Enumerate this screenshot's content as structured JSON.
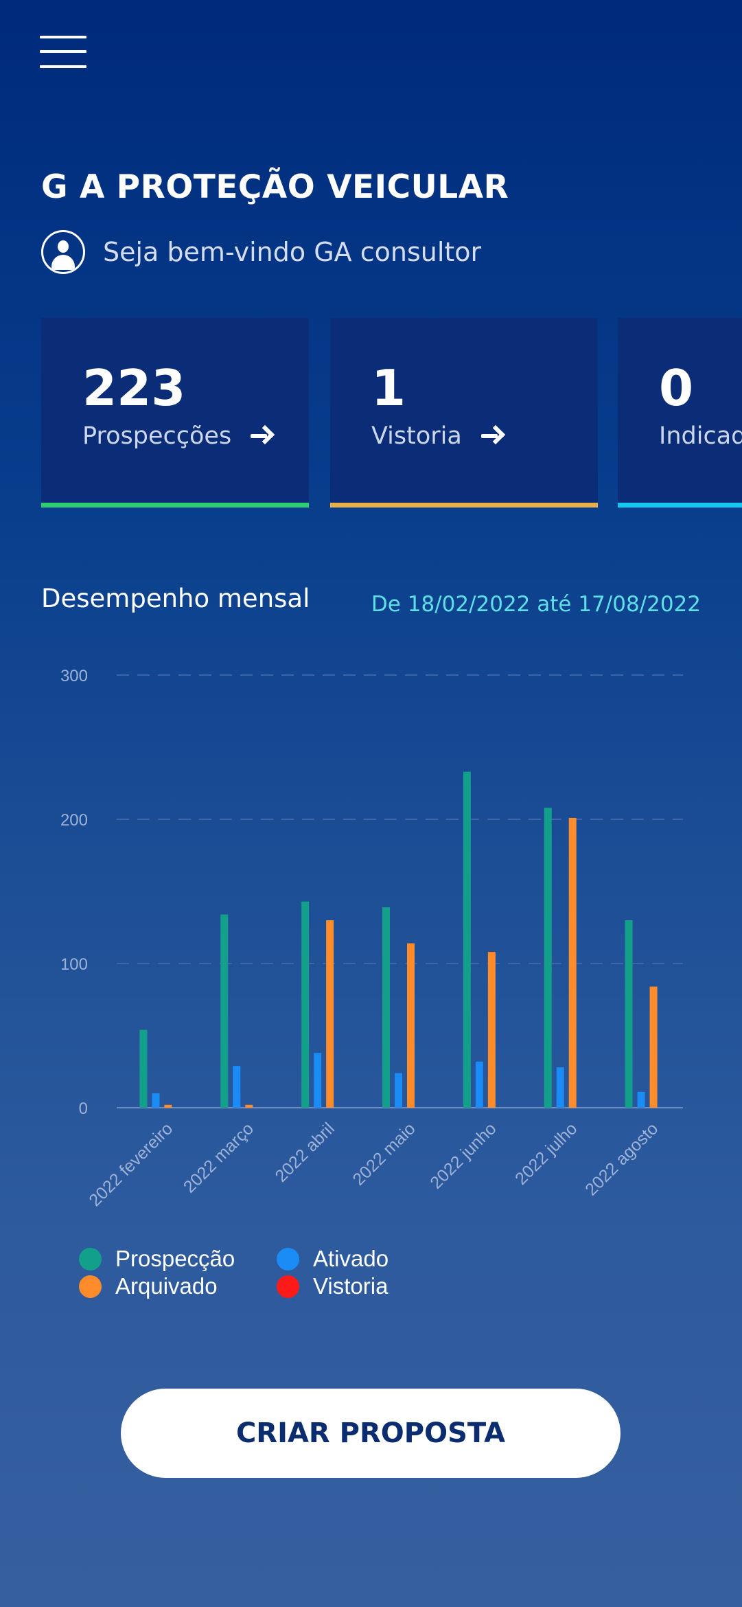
{
  "header": {
    "menu_icon": "hamburger-menu-icon",
    "app_title": "G A PROTEÇÃO VEICULAR",
    "welcome_text": "Seja bem-vindo GA consultor",
    "avatar_icon": "user-circle-icon"
  },
  "cards": [
    {
      "count": "223",
      "label": "Prospecções",
      "accent": "#2ecc71",
      "has_arrow": true
    },
    {
      "count": "1",
      "label": "Vistoria",
      "accent": "#e8b04a",
      "has_arrow": true
    },
    {
      "count": "0",
      "label": "Indicados",
      "accent": "#16c8f0",
      "has_arrow": false
    }
  ],
  "performance": {
    "title": "Desempenho mensal",
    "range": "De 18/02/2022 até 17/08/2022"
  },
  "chart_data": {
    "type": "bar",
    "categories": [
      "2022 fevereiro",
      "2022 março",
      "2022 abril",
      "2022 maio",
      "2022 junho",
      "2022 julho",
      "2022 agosto"
    ],
    "series": [
      {
        "name": "Prospecção",
        "color": "#13a08a",
        "values": [
          54,
          134,
          143,
          139,
          233,
          208,
          130
        ]
      },
      {
        "name": "Ativado",
        "color": "#1b8cf5",
        "values": [
          10,
          29,
          38,
          24,
          32,
          28,
          11
        ]
      },
      {
        "name": "Arquivado",
        "color": "#ff8c2a",
        "values": [
          2,
          2,
          130,
          114,
          108,
          201,
          84
        ]
      },
      {
        "name": "Vistoria",
        "color": "#ff1a1a",
        "values": [
          0,
          0,
          0,
          0,
          0,
          0,
          0
        ]
      }
    ],
    "yticks": [
      "0",
      "100",
      "200",
      "300"
    ],
    "ylim": [
      0,
      300
    ],
    "grid": true,
    "legend_position": "bottom-left"
  },
  "legend": [
    {
      "label": "Prospecção",
      "color": "#13a08a"
    },
    {
      "label": "Ativado",
      "color": "#1b8cf5"
    },
    {
      "label": "Arquivado",
      "color": "#ff8c2a"
    },
    {
      "label": "Vistoria",
      "color": "#ff1a1a"
    }
  ],
  "cta": {
    "label": "CRIAR PROPOSTA"
  }
}
